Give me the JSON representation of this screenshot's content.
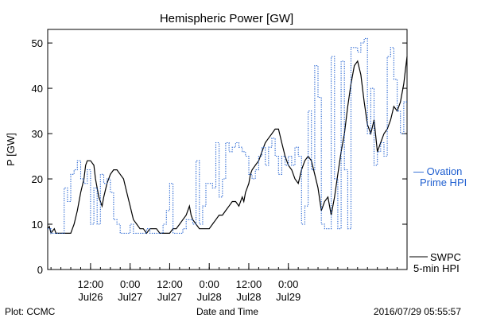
{
  "chart_data": {
    "type": "line",
    "title": "Hemispheric Power [GW]",
    "ylabel": "P [GW]",
    "xlabel": "Date and Time",
    "ylim": [
      0,
      53
    ],
    "yticks": [
      0,
      10,
      20,
      30,
      40,
      50
    ],
    "x_unit": "hours since 2016-07-25 23:00 UT",
    "xlim": [
      0,
      109
    ],
    "xticks": [
      {
        "x": 13,
        "line1": "12:00",
        "line2": "Jul26"
      },
      {
        "x": 25,
        "line1": "0:00",
        "line2": "Jul27"
      },
      {
        "x": 37,
        "line1": "12:00",
        "line2": "Jul27"
      },
      {
        "x": 49,
        "line1": "0:00",
        "line2": "Jul28"
      },
      {
        "x": 61,
        "line1": "12:00",
        "line2": "Jul28"
      },
      {
        "x": 73,
        "line1": "0:00",
        "line2": "Jul29"
      }
    ],
    "series": [
      {
        "name": "SWPC 5-min HPI",
        "label_line1": "SWPC",
        "label_line2": "5-min HPI",
        "color": "#000000",
        "style": "solid",
        "points": [
          [
            0,
            9
          ],
          [
            0.5,
            9.5
          ],
          [
            1,
            8
          ],
          [
            2,
            9
          ],
          [
            2.5,
            8
          ],
          [
            3,
            8
          ],
          [
            4,
            8
          ],
          [
            5,
            8
          ],
          [
            6,
            8
          ],
          [
            7,
            8
          ],
          [
            8,
            10
          ],
          [
            9,
            13
          ],
          [
            10,
            17
          ],
          [
            11,
            20
          ],
          [
            11.5,
            23
          ],
          [
            12,
            24
          ],
          [
            13,
            24
          ],
          [
            14,
            23
          ],
          [
            14.5,
            20
          ],
          [
            15,
            18
          ],
          [
            15.5,
            16
          ],
          [
            16,
            15
          ],
          [
            16.5,
            14
          ],
          [
            17,
            16
          ],
          [
            18,
            19
          ],
          [
            19,
            21
          ],
          [
            20,
            22
          ],
          [
            21,
            22
          ],
          [
            22,
            21
          ],
          [
            23,
            20
          ],
          [
            24,
            17
          ],
          [
            25,
            14
          ],
          [
            26,
            11
          ],
          [
            27,
            10
          ],
          [
            28,
            9
          ],
          [
            29,
            9
          ],
          [
            30,
            8
          ],
          [
            31,
            9
          ],
          [
            32,
            9
          ],
          [
            33,
            9
          ],
          [
            34,
            8
          ],
          [
            35,
            8
          ],
          [
            36,
            8
          ],
          [
            37,
            8
          ],
          [
            38,
            9
          ],
          [
            39,
            9
          ],
          [
            40,
            10
          ],
          [
            41,
            11
          ],
          [
            42,
            12
          ],
          [
            43,
            14
          ],
          [
            43.5,
            12
          ],
          [
            44,
            11
          ],
          [
            45,
            10
          ],
          [
            46,
            9
          ],
          [
            47,
            9
          ],
          [
            48,
            9
          ],
          [
            49,
            9
          ],
          [
            50,
            10
          ],
          [
            51,
            11
          ],
          [
            52,
            12
          ],
          [
            53,
            12
          ],
          [
            54,
            13
          ],
          [
            55,
            14
          ],
          [
            56,
            15
          ],
          [
            57,
            15
          ],
          [
            58,
            14
          ],
          [
            59,
            16
          ],
          [
            59.5,
            15
          ],
          [
            60,
            17
          ],
          [
            60.5,
            18
          ],
          [
            61,
            19
          ],
          [
            61.5,
            21
          ],
          [
            62,
            22
          ],
          [
            63,
            23
          ],
          [
            64,
            24
          ],
          [
            65,
            26
          ],
          [
            66,
            28
          ],
          [
            67,
            29
          ],
          [
            68,
            30
          ],
          [
            69,
            31
          ],
          [
            70,
            31
          ],
          [
            71,
            28
          ],
          [
            72,
            25
          ],
          [
            73,
            23
          ],
          [
            74,
            22
          ],
          [
            75,
            20
          ],
          [
            76,
            19
          ],
          [
            77,
            22
          ],
          [
            78,
            24
          ],
          [
            79,
            25
          ],
          [
            80,
            24
          ],
          [
            81,
            21
          ],
          [
            82,
            18
          ],
          [
            83,
            13
          ],
          [
            84,
            15
          ],
          [
            85,
            16
          ],
          [
            86,
            12
          ],
          [
            87,
            16
          ],
          [
            88,
            21
          ],
          [
            89,
            26
          ],
          [
            90,
            30
          ],
          [
            91,
            36
          ],
          [
            92,
            41
          ],
          [
            93,
            45
          ],
          [
            94,
            46
          ],
          [
            95,
            43
          ],
          [
            96,
            37
          ],
          [
            97,
            32
          ],
          [
            98,
            30
          ],
          [
            99,
            33
          ],
          [
            100,
            26
          ],
          [
            101,
            28
          ],
          [
            102,
            30
          ],
          [
            103,
            31
          ],
          [
            104,
            33
          ],
          [
            105,
            36
          ],
          [
            106,
            35
          ],
          [
            107,
            37
          ],
          [
            108,
            41
          ],
          [
            108.5,
            44
          ],
          [
            109,
            47
          ]
        ]
      },
      {
        "name": "Ovation Prime HPI",
        "label_line1": "— Ovation",
        "label_line2": "Prime HPI",
        "color": "#1f5fd0",
        "style": "dotted",
        "points": [
          [
            0,
            9
          ],
          [
            1,
            9
          ],
          [
            1,
            8
          ],
          [
            3,
            8
          ],
          [
            3,
            8
          ],
          [
            5,
            8
          ],
          [
            5,
            15
          ],
          [
            5,
            18
          ],
          [
            6,
            18
          ],
          [
            6,
            15
          ],
          [
            7,
            15
          ],
          [
            7,
            21
          ],
          [
            8,
            21
          ],
          [
            8,
            22
          ],
          [
            9,
            22
          ],
          [
            9,
            24
          ],
          [
            10,
            24
          ],
          [
            10,
            20
          ],
          [
            11,
            20
          ],
          [
            11,
            19
          ],
          [
            12,
            19
          ],
          [
            12,
            22
          ],
          [
            13,
            22
          ],
          [
            13,
            10
          ],
          [
            14,
            10
          ],
          [
            14,
            18
          ],
          [
            15,
            18
          ],
          [
            15,
            10
          ],
          [
            16,
            10
          ],
          [
            16,
            21
          ],
          [
            17,
            21
          ],
          [
            17,
            19
          ],
          [
            18,
            19
          ],
          [
            18,
            20
          ],
          [
            19,
            20
          ],
          [
            19,
            17
          ],
          [
            20,
            17
          ],
          [
            20,
            11
          ],
          [
            21,
            11
          ],
          [
            21,
            10
          ],
          [
            22,
            10
          ],
          [
            22,
            8
          ],
          [
            25,
            8
          ],
          [
            25,
            10
          ],
          [
            26,
            10
          ],
          [
            26,
            8
          ],
          [
            30,
            8
          ],
          [
            30,
            9
          ],
          [
            31,
            9
          ],
          [
            31,
            8
          ],
          [
            35,
            8
          ],
          [
            35,
            10
          ],
          [
            36,
            10
          ],
          [
            36,
            13
          ],
          [
            37,
            13
          ],
          [
            37,
            19
          ],
          [
            38,
            19
          ],
          [
            38,
            8
          ],
          [
            41,
            8
          ],
          [
            41,
            9
          ],
          [
            42,
            9
          ],
          [
            42,
            11
          ],
          [
            44,
            11
          ],
          [
            44,
            10
          ],
          [
            45,
            10
          ],
          [
            45,
            24
          ],
          [
            46,
            24
          ],
          [
            46,
            10
          ],
          [
            47,
            10
          ],
          [
            47,
            14
          ],
          [
            48,
            14
          ],
          [
            48,
            19
          ],
          [
            50,
            19
          ],
          [
            50,
            18
          ],
          [
            51,
            18
          ],
          [
            51,
            28
          ],
          [
            52,
            28
          ],
          [
            52,
            16
          ],
          [
            53,
            16
          ],
          [
            53,
            20
          ],
          [
            54,
            20
          ],
          [
            54,
            28
          ],
          [
            55,
            28
          ],
          [
            55,
            26
          ],
          [
            56,
            26
          ],
          [
            56,
            27
          ],
          [
            57,
            27
          ],
          [
            57,
            28
          ],
          [
            58,
            28
          ],
          [
            58,
            27
          ],
          [
            59,
            27
          ],
          [
            59,
            26
          ],
          [
            60,
            26
          ],
          [
            60,
            25
          ],
          [
            61,
            25
          ],
          [
            61,
            21
          ],
          [
            62,
            21
          ],
          [
            62,
            20
          ],
          [
            63,
            20
          ],
          [
            63,
            22
          ],
          [
            64,
            22
          ],
          [
            64,
            25
          ],
          [
            65,
            25
          ],
          [
            65,
            27
          ],
          [
            66,
            27
          ],
          [
            66,
            23
          ],
          [
            67,
            23
          ],
          [
            67,
            27
          ],
          [
            68,
            27
          ],
          [
            68,
            29
          ],
          [
            69,
            29
          ],
          [
            69,
            25
          ],
          [
            70,
            25
          ],
          [
            70,
            21
          ],
          [
            71,
            21
          ],
          [
            71,
            25
          ],
          [
            72,
            25
          ],
          [
            72,
            23
          ],
          [
            73,
            23
          ],
          [
            73,
            25
          ],
          [
            74,
            25
          ],
          [
            74,
            23
          ],
          [
            75,
            23
          ],
          [
            75,
            27
          ],
          [
            76,
            27
          ],
          [
            76,
            25
          ],
          [
            77,
            25
          ],
          [
            77,
            10
          ],
          [
            78,
            10
          ],
          [
            78,
            14
          ],
          [
            79,
            14
          ],
          [
            79,
            35
          ],
          [
            80,
            35
          ],
          [
            80,
            22
          ],
          [
            81,
            22
          ],
          [
            81,
            45
          ],
          [
            82,
            45
          ],
          [
            82,
            38
          ],
          [
            83,
            38
          ],
          [
            83,
            10
          ],
          [
            84,
            10
          ],
          [
            84,
            9
          ],
          [
            86,
            9
          ],
          [
            86,
            47
          ],
          [
            87,
            47
          ],
          [
            87,
            20
          ],
          [
            88,
            20
          ],
          [
            88,
            9
          ],
          [
            89,
            9
          ],
          [
            89,
            46
          ],
          [
            90,
            46
          ],
          [
            90,
            22
          ],
          [
            91,
            22
          ],
          [
            91,
            9
          ],
          [
            92,
            9
          ],
          [
            92,
            49
          ],
          [
            94,
            49
          ],
          [
            94,
            48
          ],
          [
            95,
            48
          ],
          [
            95,
            50
          ],
          [
            96,
            50
          ],
          [
            96,
            51
          ],
          [
            97,
            51
          ],
          [
            97,
            30
          ],
          [
            98,
            30
          ],
          [
            98,
            40
          ],
          [
            99,
            40
          ],
          [
            99,
            23
          ],
          [
            100,
            23
          ],
          [
            100,
            26
          ],
          [
            101,
            26
          ],
          [
            101,
            28
          ],
          [
            102,
            28
          ],
          [
            102,
            25
          ],
          [
            103,
            25
          ],
          [
            103,
            47
          ],
          [
            104,
            47
          ],
          [
            104,
            49
          ],
          [
            105,
            49
          ],
          [
            105,
            42
          ],
          [
            106,
            42
          ],
          [
            106,
            35
          ],
          [
            107,
            35
          ],
          [
            107,
            30
          ],
          [
            108,
            30
          ],
          [
            108,
            37
          ],
          [
            109,
            37
          ]
        ]
      }
    ]
  },
  "footer": {
    "left": "Plot: CCMC",
    "center": "Date and Time",
    "right": "2016/07/29 05:55:57"
  }
}
